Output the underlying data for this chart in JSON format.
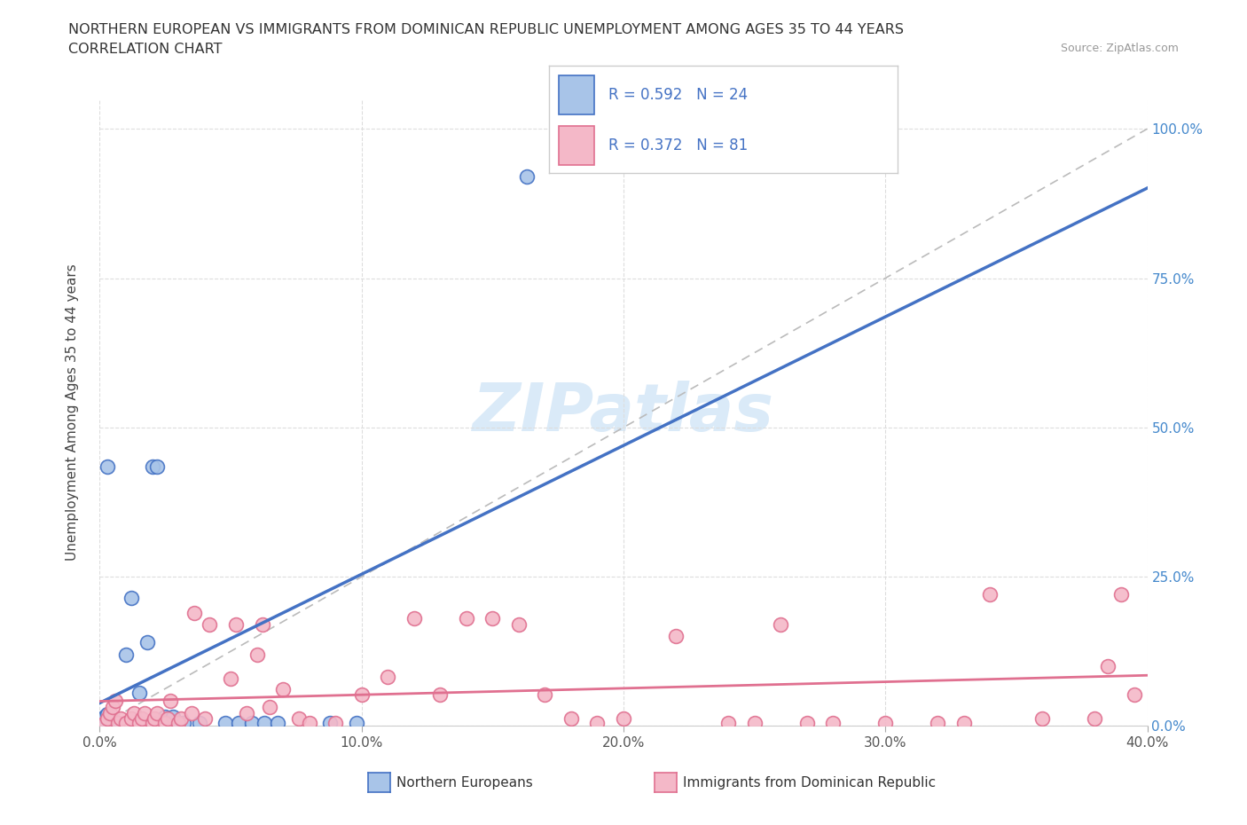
{
  "title_line1": "NORTHERN EUROPEAN VS IMMIGRANTS FROM DOMINICAN REPUBLIC UNEMPLOYMENT AMONG AGES 35 TO 44 YEARS",
  "title_line2": "CORRELATION CHART",
  "source_text": "Source: ZipAtlas.com",
  "ylabel": "Unemployment Among Ages 35 to 44 years",
  "xlim": [
    0.0,
    0.4
  ],
  "ylim": [
    0.0,
    1.05
  ],
  "xtick_labels": [
    "0.0%",
    "10.0%",
    "20.0%",
    "30.0%",
    "40.0%"
  ],
  "xtick_values": [
    0.0,
    0.1,
    0.2,
    0.3,
    0.4
  ],
  "ytick_labels": [
    "0.0%",
    "25.0%",
    "50.0%",
    "75.0%",
    "100.0%"
  ],
  "ytick_values": [
    0.0,
    0.25,
    0.5,
    0.75,
    1.0
  ],
  "blue_color": "#a8c4e8",
  "pink_color": "#f4b8c8",
  "blue_line_color": "#4472c4",
  "pink_line_color": "#e07090",
  "blue_scatter_x": [
    0.002,
    0.002,
    0.003,
    0.003,
    0.005,
    0.01,
    0.012,
    0.015,
    0.018,
    0.02,
    0.022,
    0.025,
    0.028,
    0.03,
    0.032,
    0.038,
    0.048,
    0.053,
    0.058,
    0.063,
    0.068,
    0.088,
    0.098,
    0.163
  ],
  "blue_scatter_y": [
    0.005,
    0.015,
    0.02,
    0.435,
    0.002,
    0.12,
    0.215,
    0.055,
    0.14,
    0.435,
    0.435,
    0.015,
    0.015,
    0.005,
    0.005,
    0.005,
    0.005,
    0.005,
    0.005,
    0.005,
    0.005,
    0.005,
    0.005,
    0.92
  ],
  "pink_scatter_x": [
    0.002,
    0.003,
    0.004,
    0.005,
    0.006,
    0.007,
    0.008,
    0.01,
    0.012,
    0.013,
    0.015,
    0.016,
    0.017,
    0.02,
    0.021,
    0.022,
    0.025,
    0.026,
    0.027,
    0.03,
    0.031,
    0.035,
    0.036,
    0.04,
    0.042,
    0.05,
    0.052,
    0.056,
    0.06,
    0.062,
    0.065,
    0.07,
    0.076,
    0.08,
    0.09,
    0.1,
    0.11,
    0.12,
    0.13,
    0.14,
    0.15,
    0.16,
    0.17,
    0.18,
    0.19,
    0.2,
    0.22,
    0.24,
    0.25,
    0.26,
    0.27,
    0.28,
    0.3,
    0.32,
    0.33,
    0.34,
    0.36,
    0.38,
    0.385,
    0.39,
    0.395
  ],
  "pink_scatter_y": [
    0.005,
    0.012,
    0.022,
    0.032,
    0.042,
    0.005,
    0.012,
    0.005,
    0.012,
    0.022,
    0.005,
    0.012,
    0.022,
    0.005,
    0.012,
    0.022,
    0.005,
    0.012,
    0.042,
    0.005,
    0.012,
    0.022,
    0.19,
    0.012,
    0.17,
    0.08,
    0.17,
    0.022,
    0.12,
    0.17,
    0.032,
    0.062,
    0.012,
    0.005,
    0.005,
    0.052,
    0.082,
    0.18,
    0.052,
    0.18,
    0.18,
    0.17,
    0.052,
    0.012,
    0.005,
    0.012,
    0.15,
    0.005,
    0.005,
    0.17,
    0.005,
    0.005,
    0.005,
    0.005,
    0.005,
    0.22,
    0.012,
    0.012,
    0.1,
    0.22,
    0.052
  ],
  "background_color": "#ffffff",
  "grid_color": "#dddddd",
  "watermark_color": "#daeaf8",
  "legend_color": "#4472c4"
}
